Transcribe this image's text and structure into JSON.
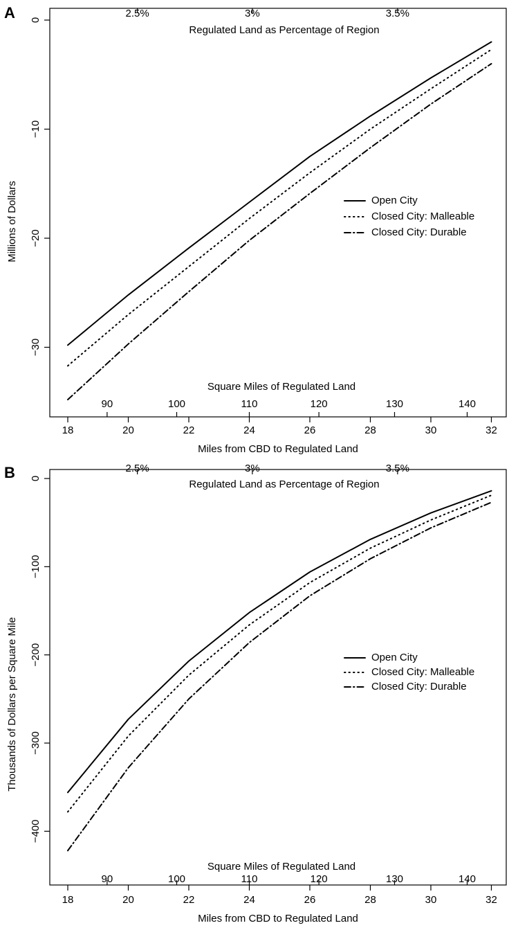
{
  "chart_data": [
    {
      "type": "line",
      "panel_label": "A",
      "x": [
        18,
        20,
        22,
        24,
        26,
        28,
        30,
        32
      ],
      "xlabel": "Miles from CBD to Regulated Land",
      "xlim": [
        17.5,
        32.5
      ],
      "x_ticks": [
        18,
        20,
        22,
        24,
        26,
        28,
        30,
        32
      ],
      "ylabel": "Millions of Dollars",
      "ylim": [
        -36,
        0
      ],
      "y_ticks": [
        0,
        -10,
        -20,
        -30
      ],
      "top_axis_title": "Regulated Land as Percentage of Region",
      "top_axis_ticks": [
        {
          "label": "2.5%",
          "x": 20.3
        },
        {
          "label": "3%",
          "x": 24.1
        },
        {
          "label": "3.5%",
          "x": 28.9
        }
      ],
      "inner_axis_title": "Square Miles of Regulated Land",
      "inner_axis_ticks": [
        {
          "label": "90",
          "x": 19.3
        },
        {
          "label": "100",
          "x": 21.6
        },
        {
          "label": "110",
          "x": 24.0
        },
        {
          "label": "120",
          "x": 26.3
        },
        {
          "label": "130",
          "x": 28.8
        },
        {
          "label": "140",
          "x": 31.2
        }
      ],
      "legend_position": "right",
      "series": [
        {
          "name": "Open City",
          "style": "solid",
          "values": [
            -29.8,
            -25.2,
            -20.9,
            -16.7,
            -12.5,
            -8.8,
            -5.3,
            -2.0
          ]
        },
        {
          "name": "Closed City: Malleable",
          "style": "dotted",
          "values": [
            -31.7,
            -27.0,
            -22.6,
            -18.2,
            -14.0,
            -10.0,
            -6.3,
            -2.7
          ]
        },
        {
          "name": "Closed City: Durable",
          "style": "dashdot",
          "values": [
            -34.8,
            -29.7,
            -24.9,
            -20.2,
            -15.9,
            -11.7,
            -7.7,
            -4.0
          ]
        }
      ]
    },
    {
      "type": "line",
      "panel_label": "B",
      "x": [
        18,
        20,
        22,
        24,
        26,
        28,
        30,
        32
      ],
      "xlabel": "Miles from CBD to Regulated Land",
      "xlim": [
        17.5,
        32.5
      ],
      "x_ticks": [
        18,
        20,
        22,
        24,
        26,
        28,
        30,
        32
      ],
      "ylabel": "Thousands of Dollars per Square Mile",
      "ylim": [
        -460,
        0
      ],
      "y_ticks": [
        0,
        -100,
        -200,
        -300,
        -400
      ],
      "top_axis_title": "Regulated Land as Percentage of Region",
      "top_axis_ticks": [
        {
          "label": "2.5%",
          "x": 20.3
        },
        {
          "label": "3%",
          "x": 24.1
        },
        {
          "label": "3.5%",
          "x": 28.9
        }
      ],
      "inner_axis_title": "Square Miles of Regulated Land",
      "inner_axis_ticks": [
        {
          "label": "90",
          "x": 19.3
        },
        {
          "label": "100",
          "x": 21.6
        },
        {
          "label": "110",
          "x": 24.0
        },
        {
          "label": "120",
          "x": 26.3
        },
        {
          "label": "130",
          "x": 28.8
        },
        {
          "label": "140",
          "x": 31.2
        }
      ],
      "legend_position": "right",
      "series": [
        {
          "name": "Open City",
          "style": "solid",
          "values": [
            -356,
            -273,
            -207,
            -152,
            -106,
            -69,
            -39,
            -14
          ]
        },
        {
          "name": "Closed City: Malleable",
          "style": "dotted",
          "values": [
            -378,
            -292,
            -223,
            -166,
            -118,
            -79,
            -47,
            -19
          ]
        },
        {
          "name": "Closed City: Durable",
          "style": "dashdot",
          "values": [
            -422,
            -328,
            -250,
            -186,
            -133,
            -91,
            -56,
            -27
          ]
        }
      ]
    }
  ]
}
